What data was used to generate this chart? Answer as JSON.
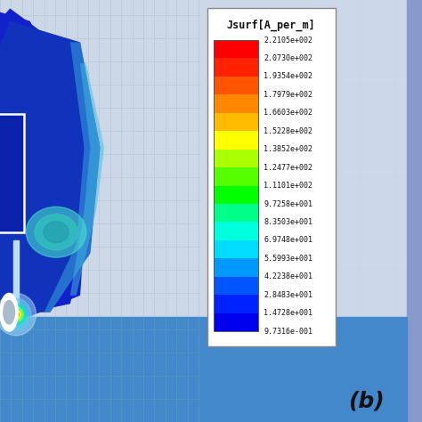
{
  "colorbar_title": "Jsurf[A_per_m]",
  "colorbar_values": [
    "2.2105e+002",
    "2.0730e+002",
    "1.9354e+002",
    "1.7979e+002",
    "1.6603e+002",
    "1.5228e+002",
    "1.3852e+002",
    "1.2477e+002",
    "1.1101e+002",
    "9.7258e+001",
    "8.3503e+001",
    "6.9748e+001",
    "5.5993e+001",
    "4.2238e+001",
    "2.8483e+001",
    "1.4728e+001",
    "9.7316e-001"
  ],
  "label_b": "(b)",
  "bg_color_main": "#ccd8e8",
  "bg_color_bottom": "#4488cc",
  "grid_color": "#b8c8d8",
  "colorbar_bg": "#ffffff",
  "font_color": "#111111",
  "antenna_dark_blue": "#1122bb",
  "right_panel_grid_color": "#c8d4e8",
  "right_stripe_color": "#8899cc",
  "colorbar_colors": [
    "#ff0000",
    "#ff3300",
    "#ff6600",
    "#ff9900",
    "#ffcc00",
    "#ffff00",
    "#ccff00",
    "#66ff00",
    "#00ff00",
    "#00ff88",
    "#00ffcc",
    "#00ccff",
    "#0099ff",
    "#0066ff",
    "#0033ff",
    "#0000ff",
    "#0000cc"
  ]
}
